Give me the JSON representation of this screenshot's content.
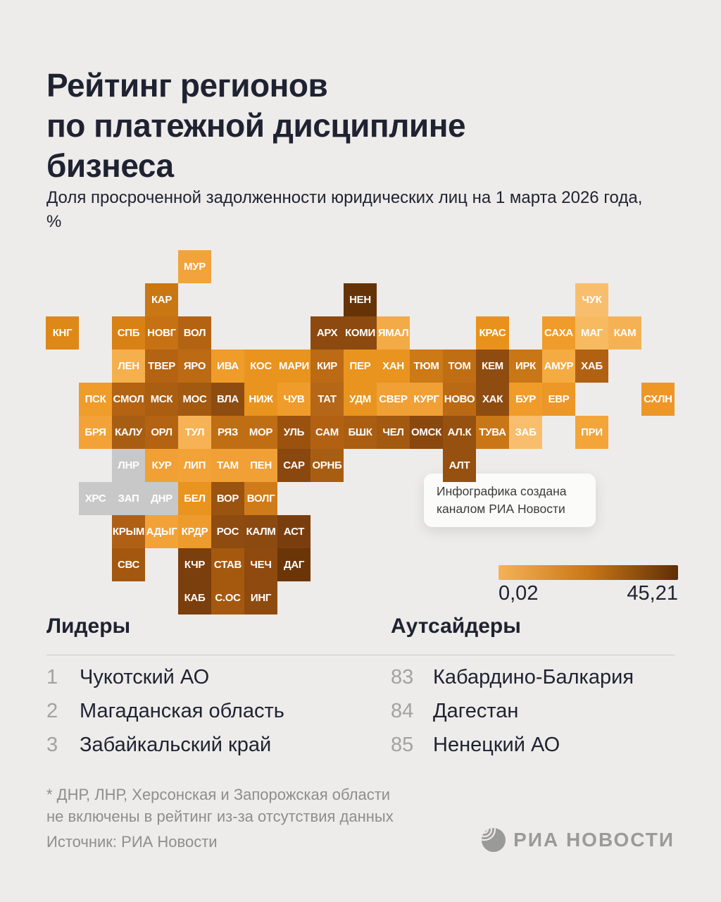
{
  "title": {
    "lines": [
      "Рейтинг регионов",
      "по платежной дисциплине",
      "бизнеса"
    ]
  },
  "subtitle": "Доля просроченной задолженности юридических лиц на 1 марта 2026 года, %",
  "tooltip": {
    "line1": "Инфографика создана",
    "line2": "каналом РИА Новости"
  },
  "legend": {
    "min_label": "0,02",
    "max_label": "45,21",
    "colors": [
      "#F5B257",
      "#C97716",
      "#5E2E07"
    ]
  },
  "leaders": {
    "heading": "Лидеры",
    "items": [
      {
        "rank": "1",
        "name": "Чукотский АО"
      },
      {
        "rank": "2",
        "name": "Магаданская область"
      },
      {
        "rank": "3",
        "name": "Забайкальский край"
      }
    ]
  },
  "outsiders": {
    "heading": "Аутсайдеры",
    "items": [
      {
        "rank": "83",
        "name": "Кабардино-Балкария"
      },
      {
        "rank": "84",
        "name": "Дагестан"
      },
      {
        "rank": "85",
        "name": "Ненецкий АО"
      }
    ]
  },
  "footnote": {
    "line1": "* ДНР, ЛНР, Херсонская и Запорожская области",
    "line2": "не включены в рейтинг из-за отсутствия данных"
  },
  "source": "Источник: РИА Новости",
  "logo": {
    "text": "РИА НОВОСТИ"
  },
  "chart_data": {
    "type": "heatmap",
    "title": "Рейтинг регионов по платежной дисциплине бизнеса",
    "subtitle": "Доля просроченной задолженности юридических лиц на 1 марта 2026 года, %",
    "legend": {
      "min": 0.02,
      "max": 45.21,
      "min_label": "0,02",
      "max_label": "45,21"
    },
    "excluded_regions": [
      "ДНР",
      "ЛНР",
      "ХРС",
      "ЗАП"
    ],
    "excluded_color": "#C8C8C8",
    "tiles": [
      {
        "code": "МУР",
        "col": 4,
        "row": 0,
        "color": "#F2A33C"
      },
      {
        "code": "КАР",
        "col": 3,
        "row": 1,
        "color": "#C97712"
      },
      {
        "code": "НЕН",
        "col": 9,
        "row": 1,
        "color": "#663307"
      },
      {
        "code": "ЧУК",
        "col": 16,
        "row": 1,
        "color": "#F8BE6E"
      },
      {
        "code": "КНГ",
        "col": 0,
        "row": 2,
        "color": "#DE8817"
      },
      {
        "code": "СПБ",
        "col": 2,
        "row": 2,
        "color": "#D88115"
      },
      {
        "code": "НОВГ",
        "col": 3,
        "row": 2,
        "color": "#C67113"
      },
      {
        "code": "ВОЛ",
        "col": 4,
        "row": 2,
        "color": "#B36312"
      },
      {
        "code": "АРХ",
        "col": 8,
        "row": 2,
        "color": "#8C4A10"
      },
      {
        "code": "КОМИ",
        "col": 9,
        "row": 2,
        "color": "#8C4A10"
      },
      {
        "code": "ЯМАЛ",
        "col": 10,
        "row": 2,
        "color": "#F3AB47"
      },
      {
        "code": "КРАС",
        "col": 13,
        "row": 2,
        "color": "#E8921C"
      },
      {
        "code": "САХА",
        "col": 15,
        "row": 2,
        "color": "#EF9C2A"
      },
      {
        "code": "МАГ",
        "col": 16,
        "row": 2,
        "color": "#F7BA60"
      },
      {
        "code": "КАМ",
        "col": 17,
        "row": 2,
        "color": "#F5B254"
      },
      {
        "code": "ЛЕН",
        "col": 2,
        "row": 3,
        "color": "#F5AF4D"
      },
      {
        "code": "ТВЕР",
        "col": 3,
        "row": 3,
        "color": "#B36312"
      },
      {
        "code": "ЯРО",
        "col": 4,
        "row": 3,
        "color": "#BC6A14"
      },
      {
        "code": "ИВА",
        "col": 5,
        "row": 3,
        "color": "#EF9C2A"
      },
      {
        "code": "КОС",
        "col": 6,
        "row": 3,
        "color": "#E8941F"
      },
      {
        "code": "МАРИ",
        "col": 7,
        "row": 3,
        "color": "#E8941F"
      },
      {
        "code": "КИР",
        "col": 8,
        "row": 3,
        "color": "#BC6A14"
      },
      {
        "code": "ПЕР",
        "col": 9,
        "row": 3,
        "color": "#E8941F"
      },
      {
        "code": "ХАН",
        "col": 10,
        "row": 3,
        "color": "#E8941F"
      },
      {
        "code": "ТЮМ",
        "col": 11,
        "row": 3,
        "color": "#CC7916"
      },
      {
        "code": "ТОМ",
        "col": 12,
        "row": 3,
        "color": "#C06E14"
      },
      {
        "code": "КЕМ",
        "col": 13,
        "row": 3,
        "color": "#8F4C10"
      },
      {
        "code": "ИРК",
        "col": 14,
        "row": 3,
        "color": "#C97716"
      },
      {
        "code": "АМУР",
        "col": 15,
        "row": 3,
        "color": "#F4AB42"
      },
      {
        "code": "ХАБ",
        "col": 16,
        "row": 3,
        "color": "#B26113"
      },
      {
        "code": "ПСК",
        "col": 1,
        "row": 4,
        "color": "#EF9C2A"
      },
      {
        "code": "СМОЛ",
        "col": 2,
        "row": 4,
        "color": "#B36312"
      },
      {
        "code": "МСК",
        "col": 3,
        "row": 4,
        "color": "#AA5E12"
      },
      {
        "code": "МОС",
        "col": 4,
        "row": 4,
        "color": "#A25910"
      },
      {
        "code": "ВЛА",
        "col": 5,
        "row": 4,
        "color": "#8F4C10"
      },
      {
        "code": "НИЖ",
        "col": 6,
        "row": 4,
        "color": "#E8941F"
      },
      {
        "code": "ЧУВ",
        "col": 7,
        "row": 4,
        "color": "#EF9C2A"
      },
      {
        "code": "ТАТ",
        "col": 8,
        "row": 4,
        "color": "#B56616"
      },
      {
        "code": "УДМ",
        "col": 9,
        "row": 4,
        "color": "#E8941F"
      },
      {
        "code": "СВЕР",
        "col": 10,
        "row": 4,
        "color": "#F0A035"
      },
      {
        "code": "КУРГ",
        "col": 11,
        "row": 4,
        "color": "#F0A035"
      },
      {
        "code": "НОВО",
        "col": 12,
        "row": 4,
        "color": "#BA6A15"
      },
      {
        "code": "ХАК",
        "col": 13,
        "row": 4,
        "color": "#8F4C10"
      },
      {
        "code": "БУР",
        "col": 14,
        "row": 4,
        "color": "#F09C2B"
      },
      {
        "code": "ЕВР",
        "col": 15,
        "row": 4,
        "color": "#ED9727"
      },
      {
        "code": "СХЛН",
        "col": 18,
        "row": 4,
        "color": "#ED9727"
      },
      {
        "code": "БРЯ",
        "col": 1,
        "row": 5,
        "color": "#F2A237"
      },
      {
        "code": "КАЛУ",
        "col": 2,
        "row": 5,
        "color": "#A85E12"
      },
      {
        "code": "ОРЛ",
        "col": 3,
        "row": 5,
        "color": "#B36312"
      },
      {
        "code": "ТУЛ",
        "col": 4,
        "row": 5,
        "color": "#F6B254"
      },
      {
        "code": "РЯЗ",
        "col": 5,
        "row": 5,
        "color": "#C06E14"
      },
      {
        "code": "МОР",
        "col": 6,
        "row": 5,
        "color": "#C06E14"
      },
      {
        "code": "УЛЬ",
        "col": 7,
        "row": 5,
        "color": "#9A520E"
      },
      {
        "code": "САМ",
        "col": 8,
        "row": 5,
        "color": "#B26113"
      },
      {
        "code": "БШК",
        "col": 9,
        "row": 5,
        "color": "#AA5E12"
      },
      {
        "code": "ЧЕЛ",
        "col": 10,
        "row": 5,
        "color": "#A25910"
      },
      {
        "code": "ОМСК",
        "col": 11,
        "row": 5,
        "color": "#8A470E"
      },
      {
        "code": "АЛ.К",
        "col": 12,
        "row": 5,
        "color": "#96500F"
      },
      {
        "code": "ТУВА",
        "col": 13,
        "row": 5,
        "color": "#C97716"
      },
      {
        "code": "ЗАБ",
        "col": 14,
        "row": 5,
        "color": "#F8BE6E"
      },
      {
        "code": "ПРИ",
        "col": 16,
        "row": 5,
        "color": "#F3A53A"
      },
      {
        "code": "ЛНР",
        "col": 2,
        "row": 6,
        "color": "#C8C8C8"
      },
      {
        "code": "КУР",
        "col": 3,
        "row": 6,
        "color": "#F0A035"
      },
      {
        "code": "ЛИП",
        "col": 4,
        "row": 6,
        "color": "#F2A237"
      },
      {
        "code": "ТАМ",
        "col": 5,
        "row": 6,
        "color": "#F0A035"
      },
      {
        "code": "ПЕН",
        "col": 6,
        "row": 6,
        "color": "#F0A035"
      },
      {
        "code": "САР",
        "col": 7,
        "row": 6,
        "color": "#8A470E"
      },
      {
        "code": "ОРНБ",
        "col": 8,
        "row": 6,
        "color": "#A85E12"
      },
      {
        "code": "АЛТ",
        "col": 12,
        "row": 6,
        "color": "#96500F"
      },
      {
        "code": "ХРС",
        "col": 1,
        "row": 7,
        "color": "#C8C8C8"
      },
      {
        "code": "ЗАП",
        "col": 2,
        "row": 7,
        "color": "#C8C8C8"
      },
      {
        "code": "ДНР",
        "col": 3,
        "row": 7,
        "color": "#C8C8C8"
      },
      {
        "code": "БЕЛ",
        "col": 4,
        "row": 7,
        "color": "#E8941F"
      },
      {
        "code": "ВОР",
        "col": 5,
        "row": 7,
        "color": "#9A5410"
      },
      {
        "code": "ВОЛГ",
        "col": 6,
        "row": 7,
        "color": "#D07B1A"
      },
      {
        "code": "КРЫМ",
        "col": 2,
        "row": 8,
        "color": "#B06014"
      },
      {
        "code": "АДЫГ",
        "col": 3,
        "row": 8,
        "color": "#F2A237"
      },
      {
        "code": "КРДР",
        "col": 4,
        "row": 8,
        "color": "#EE9B2E"
      },
      {
        "code": "РОС",
        "col": 5,
        "row": 8,
        "color": "#8F4C10"
      },
      {
        "code": "КАЛМ",
        "col": 6,
        "row": 8,
        "color": "#8B4A10"
      },
      {
        "code": "АСТ",
        "col": 7,
        "row": 8,
        "color": "#7A3E0E"
      },
      {
        "code": "СВС",
        "col": 2,
        "row": 9,
        "color": "#A3570F"
      },
      {
        "code": "КЧР",
        "col": 4,
        "row": 9,
        "color": "#7B3E0D"
      },
      {
        "code": "СТАВ",
        "col": 5,
        "row": 9,
        "color": "#A5590F"
      },
      {
        "code": "ЧЕЧ",
        "col": 6,
        "row": 9,
        "color": "#8F4A10"
      },
      {
        "code": "ДАГ",
        "col": 7,
        "row": 9,
        "color": "#6B3508"
      },
      {
        "code": "КАБ",
        "col": 4,
        "row": 10,
        "color": "#7B3E0D"
      },
      {
        "code": "С.ОС",
        "col": 5,
        "row": 10,
        "color": "#A5590F"
      },
      {
        "code": "ИНГ",
        "col": 6,
        "row": 10,
        "color": "#8F4A10"
      }
    ],
    "leaders": [
      {
        "rank": 1,
        "name": "Чукотский АО"
      },
      {
        "rank": 2,
        "name": "Магаданская область"
      },
      {
        "rank": 3,
        "name": "Забайкальский край"
      }
    ],
    "outsiders": [
      {
        "rank": 83,
        "name": "Кабардино-Балкария"
      },
      {
        "rank": 84,
        "name": "Дагестан"
      },
      {
        "rank": 85,
        "name": "Ненецкий АО"
      }
    ]
  }
}
